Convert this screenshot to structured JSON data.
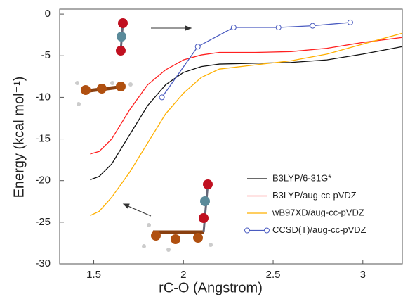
{
  "chart_data": {
    "type": "line",
    "x_label": "rC-O (Angstrom)",
    "y_label": "Energy (kcal mol⁻¹)",
    "xlim": [
      1.31,
      3.22
    ],
    "ylim": [
      -30,
      0.6
    ],
    "xticks": [
      1.5,
      2,
      2.5,
      3
    ],
    "yticks": [
      0,
      -5,
      -10,
      -15,
      -20,
      -25,
      -30
    ],
    "legend": "lower right",
    "series": [
      {
        "name": "B3LYP/6-31G*",
        "color": "#111111",
        "marker": false,
        "x": [
          1.48,
          1.53,
          1.6,
          1.7,
          1.8,
          1.9,
          2.0,
          2.1,
          2.2,
          2.4,
          2.6,
          2.8,
          3.0,
          3.22
        ],
        "values": [
          -19.9,
          -19.5,
          -18,
          -14.5,
          -11,
          -8.5,
          -7,
          -6.3,
          -6,
          -5.9,
          -5.8,
          -5.5,
          -4.8,
          -3.9
        ]
      },
      {
        "name": "B3LYP/aug-cc-pVDZ",
        "color": "#ff2020",
        "marker": false,
        "x": [
          1.48,
          1.53,
          1.6,
          1.7,
          1.8,
          1.9,
          2.0,
          2.1,
          2.2,
          2.4,
          2.6,
          2.8,
          3.0,
          3.22
        ],
        "values": [
          -16.8,
          -16.5,
          -15,
          -11.5,
          -8.5,
          -6.7,
          -5.5,
          -4.9,
          -4.6,
          -4.6,
          -4.5,
          -4.1,
          -3.4,
          -2.8
        ]
      },
      {
        "name": "wB97XD/aug-cc-pVDZ",
        "color": "#ffb000",
        "marker": false,
        "x": [
          1.48,
          1.53,
          1.6,
          1.7,
          1.8,
          1.9,
          2.0,
          2.1,
          2.2,
          2.4,
          2.6,
          2.8,
          3.0,
          3.22
        ],
        "values": [
          -24.2,
          -23.7,
          -22,
          -19,
          -15.5,
          -12,
          -9.5,
          -7.6,
          -6.6,
          -6.1,
          -5.6,
          -4.8,
          -3.6,
          -2.3
        ]
      },
      {
        "name": "CCSD(T)/aug-cc-pVDZ",
        "color": "#4a5bc0",
        "marker": true,
        "x": [
          1.88,
          2.08,
          2.28,
          2.53,
          2.72,
          2.93
        ],
        "values": [
          -10,
          -3.9,
          -1.6,
          -1.6,
          -1.4,
          -1.0
        ]
      }
    ]
  }
}
